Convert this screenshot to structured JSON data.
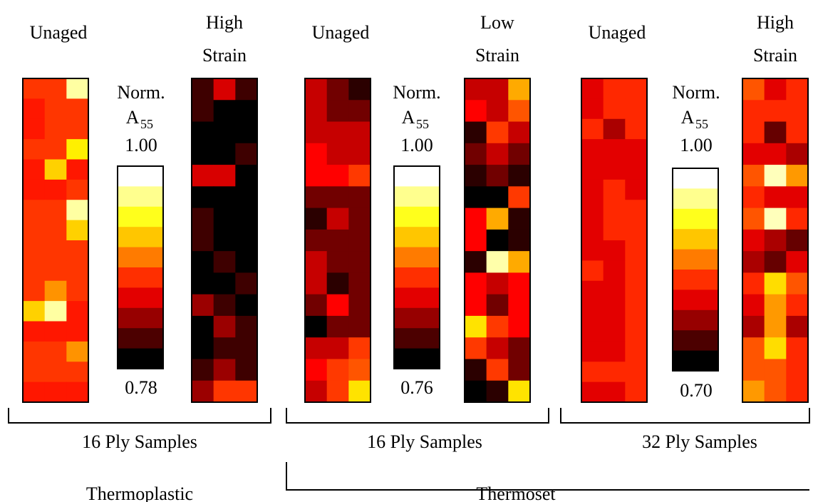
{
  "chart_data": {
    "type": "heatmap",
    "colormap": "hot",
    "colorbar": {
      "levels": 10,
      "label_main": "Norm.",
      "label_symbol": "A",
      "label_subscript": "55"
    },
    "groups": [
      {
        "title": "16 Ply Samples",
        "colorbar_max": "1.00",
        "colorbar_min": "0.78",
        "maps": [
          {
            "title_lines": [
              "Unaged"
            ],
            "values": [
              [
                0.88,
                0.88,
                0.98
              ],
              [
                0.87,
                0.88,
                0.88
              ],
              [
                0.87,
                0.88,
                0.88
              ],
              [
                0.88,
                0.88,
                0.94
              ],
              [
                0.87,
                0.93,
                0.87
              ],
              [
                0.87,
                0.87,
                0.88
              ],
              [
                0.88,
                0.88,
                0.98
              ],
              [
                0.88,
                0.88,
                0.93
              ],
              [
                0.88,
                0.88,
                0.88
              ],
              [
                0.88,
                0.88,
                0.88
              ],
              [
                0.88,
                0.91,
                0.88
              ],
              [
                0.93,
                0.98,
                0.87
              ],
              [
                0.87,
                0.87,
                0.87
              ],
              [
                0.88,
                0.88,
                0.91
              ],
              [
                0.88,
                0.88,
                0.88
              ],
              [
                0.87,
                0.87,
                0.87
              ]
            ]
          },
          {
            "title_lines": [
              "High",
              "Strain"
            ],
            "values": [
              [
                0.8,
                0.85,
                0.8
              ],
              [
                0.8,
                0.745,
                0.775
              ],
              [
                0.745,
                0.775,
                0.775
              ],
              [
                0.775,
                0.775,
                0.8
              ],
              [
                0.85,
                0.85,
                0.775
              ],
              [
                0.745,
                0.775,
                0.775
              ],
              [
                0.8,
                0.775,
                0.745
              ],
              [
                0.8,
                0.775,
                0.775
              ],
              [
                0.775,
                0.8,
                0.775
              ],
              [
                0.775,
                0.775,
                0.8
              ],
              [
                0.83,
                0.8,
                0.745
              ],
              [
                0.775,
                0.83,
                0.8
              ],
              [
                0.775,
                0.8,
                0.8
              ],
              [
                0.8,
                0.83,
                0.8
              ],
              [
                0.83,
                0.88,
                0.88
              ]
            ]
          }
        ]
      },
      {
        "title": "16 Ply Samples",
        "colorbar_max": "1.00",
        "colorbar_min": "0.76",
        "maps": [
          {
            "title_lines": [
              "Unaged"
            ],
            "values": [
              [
                0.83,
                0.8,
                0.775
              ],
              [
                0.83,
                0.8,
                0.8
              ],
              [
                0.83,
                0.83,
                0.83
              ],
              [
                0.85,
                0.83,
                0.83
              ],
              [
                0.85,
                0.85,
                0.87
              ],
              [
                0.8,
                0.8,
                0.8
              ],
              [
                0.775,
                0.83,
                0.8
              ],
              [
                0.8,
                0.8,
                0.8
              ],
              [
                0.83,
                0.8,
                0.8
              ],
              [
                0.83,
                0.775,
                0.8
              ],
              [
                0.8,
                0.85,
                0.8
              ],
              [
                0.745,
                0.8,
                0.8
              ],
              [
                0.83,
                0.83,
                0.87
              ],
              [
                0.85,
                0.87,
                0.88
              ],
              [
                0.83,
                0.87,
                0.93
              ]
            ]
          },
          {
            "title_lines": [
              "Low",
              "Strain"
            ],
            "values": [
              [
                0.83,
                0.83,
                0.91
              ],
              [
                0.85,
                0.83,
                0.88
              ],
              [
                0.775,
                0.87,
                0.83
              ],
              [
                0.8,
                0.83,
                0.8
              ],
              [
                0.775,
                0.8,
                0.775
              ],
              [
                0.745,
                0.745,
                0.87
              ],
              [
                0.85,
                0.91,
                0.775
              ],
              [
                0.85,
                0.72,
                0.775
              ],
              [
                0.775,
                0.98,
                0.91
              ],
              [
                0.85,
                0.83,
                0.85
              ],
              [
                0.85,
                0.8,
                0.85
              ],
              [
                0.93,
                0.87,
                0.85
              ],
              [
                0.87,
                0.83,
                0.8
              ],
              [
                0.775,
                0.87,
                0.8
              ],
              [
                0.72,
                0.775,
                0.93
              ]
            ]
          }
        ]
      },
      {
        "title": "32 Ply Samples",
        "colorbar_max": "1.00",
        "colorbar_min": "0.70",
        "maps": [
          {
            "title_lines": [
              "Unaged"
            ],
            "values": [
              [
                0.8,
                0.83,
                0.83
              ],
              [
                0.8,
                0.83,
                0.83
              ],
              [
                0.83,
                0.775,
                0.83
              ],
              [
                0.8,
                0.8,
                0.8
              ],
              [
                0.8,
                0.8,
                0.8
              ],
              [
                0.8,
                0.83,
                0.8
              ],
              [
                0.8,
                0.83,
                0.83
              ],
              [
                0.8,
                0.83,
                0.83
              ],
              [
                0.8,
                0.8,
                0.83
              ],
              [
                0.83,
                0.8,
                0.83
              ],
              [
                0.8,
                0.8,
                0.83
              ],
              [
                0.8,
                0.8,
                0.83
              ],
              [
                0.8,
                0.8,
                0.83
              ],
              [
                0.8,
                0.8,
                0.83
              ],
              [
                0.83,
                0.83,
                0.83
              ],
              [
                0.8,
                0.8,
                0.83
              ]
            ]
          },
          {
            "title_lines": [
              "High",
              "Strain"
            ],
            "values": [
              [
                0.85,
                0.8,
                0.83
              ],
              [
                0.83,
                0.83,
                0.83
              ],
              [
                0.83,
                0.745,
                0.83
              ],
              [
                0.8,
                0.8,
                0.775
              ],
              [
                0.85,
                0.98,
                0.88
              ],
              [
                0.83,
                0.8,
                0.8
              ],
              [
                0.85,
                0.98,
                0.83
              ],
              [
                0.8,
                0.775,
                0.745
              ],
              [
                0.775,
                0.745,
                0.8
              ],
              [
                0.83,
                0.91,
                0.85
              ],
              [
                0.8,
                0.88,
                0.83
              ],
              [
                0.775,
                0.88,
                0.775
              ],
              [
                0.85,
                0.91,
                0.83
              ],
              [
                0.85,
                0.85,
                0.83
              ],
              [
                0.88,
                0.85,
                0.83
              ]
            ]
          }
        ]
      }
    ],
    "categories": [
      {
        "title": "Thermoplastic",
        "groups": [
          0
        ]
      },
      {
        "title": "Thermoset",
        "groups": [
          1,
          2
        ]
      }
    ]
  }
}
